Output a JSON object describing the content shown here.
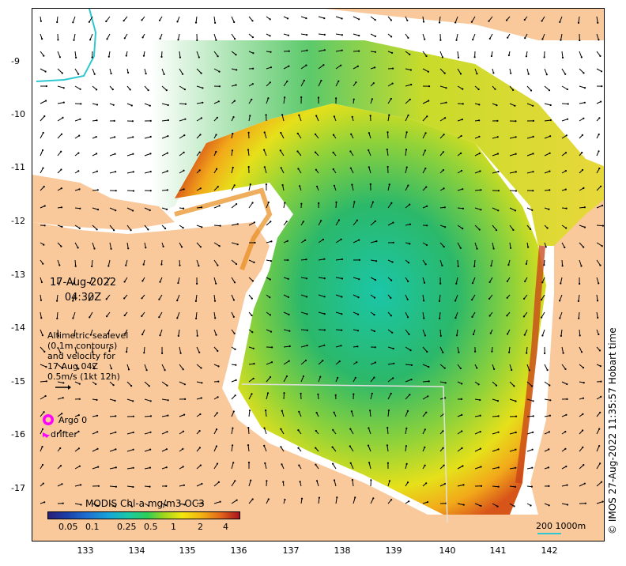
{
  "date_label": {
    "line1": "17-Aug-2022",
    "line2": "04:30Z"
  },
  "altimetry_label": {
    "lines": [
      "Altimetric sealevel",
      "(0.1m contours)",
      "and velocity for",
      "17 Aug 04Z",
      "0.5m/s (1kt 12h)"
    ]
  },
  "legend": {
    "argo": "Argo 0",
    "drifter": "drifter"
  },
  "colorbar": {
    "title": "MODIS Chl-a mg/m3 OC3",
    "ticks": [
      "0.05",
      "0.1",
      "0.25",
      "0.5",
      "1",
      "2",
      "4"
    ]
  },
  "scale_bar": {
    "label": "200  1000m"
  },
  "copyright": "© IMOS 27-Aug-2022 11:35:57 Hobart time",
  "axes": {
    "y_ticks": [
      "-9",
      "-10",
      "-11",
      "-12",
      "-13",
      "-14",
      "-15",
      "-16",
      "-17"
    ],
    "x_ticks": [
      "133",
      "134",
      "135",
      "136",
      "137",
      "138",
      "139",
      "140",
      "141",
      "142"
    ]
  },
  "colors": {
    "land": "#f9c89b",
    "chl_low": "#1bc9a5",
    "chl_mid": "#9ad61f",
    "chl_high": "#e3671a",
    "argo": "#ff00ff",
    "contour": "#2fc8d0"
  }
}
